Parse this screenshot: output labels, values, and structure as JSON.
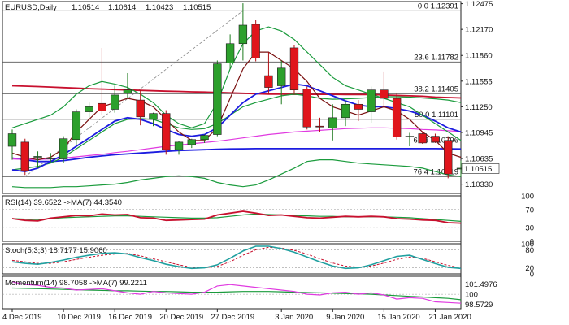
{
  "chart_data": [
    {
      "type": "candlestick",
      "panel": "price",
      "header": {
        "symbol": "EURUSD,Daily",
        "ohlc": [
          "1.10514",
          "1.10614",
          "1.10423",
          "1.10515"
        ]
      },
      "ylim": [
        1.1022,
        1.125
      ],
      "yticks": [
        "1.12475",
        "1.12170",
        "1.11860",
        "1.11555",
        "1.11250",
        "1.10945",
        "1.10635",
        "1.10330"
      ],
      "ytick_values": [
        1.12475,
        1.1217,
        1.1186,
        1.11555,
        1.1125,
        1.10945,
        1.10635,
        1.1033
      ],
      "current_price_label": "1.10515",
      "current_price": 1.10515,
      "fib_levels": [
        {
          "label": "0.0 1.12391",
          "value": 1.12391
        },
        {
          "label": "23.6 1.11782",
          "value": 1.11782
        },
        {
          "label": "38.2 1.11405",
          "value": 1.11405
        },
        {
          "label": "50.0 1.11101",
          "value": 1.11101
        },
        {
          "label": "61.8 1.10796",
          "value": 1.10796
        },
        {
          "label": "76.4 1.10419",
          "value": 1.10419
        }
      ],
      "candles": [
        {
          "o": 1.1078,
          "h": 1.1098,
          "l": 1.1062,
          "c": 1.1093
        },
        {
          "o": 1.1083,
          "h": 1.1087,
          "l": 1.1044,
          "c": 1.1049
        },
        {
          "o": 1.1065,
          "h": 1.1072,
          "l": 1.1052,
          "c": 1.1066
        },
        {
          "o": 1.1063,
          "h": 1.107,
          "l": 1.1058,
          "c": 1.1064
        },
        {
          "o": 1.1063,
          "h": 1.109,
          "l": 1.1058,
          "c": 1.1087
        },
        {
          "o": 1.1086,
          "h": 1.1122,
          "l": 1.108,
          "c": 1.1119
        },
        {
          "o": 1.1119,
          "h": 1.113,
          "l": 1.1112,
          "c": 1.1125
        },
        {
          "o": 1.1129,
          "h": 1.1195,
          "l": 1.1115,
          "c": 1.112
        },
        {
          "o": 1.1122,
          "h": 1.115,
          "l": 1.1118,
          "c": 1.1139
        },
        {
          "o": 1.1141,
          "h": 1.1165,
          "l": 1.1135,
          "c": 1.1145
        },
        {
          "o": 1.1133,
          "h": 1.1145,
          "l": 1.1103,
          "c": 1.1113
        },
        {
          "o": 1.111,
          "h": 1.1118,
          "l": 1.1102,
          "c": 1.1117
        },
        {
          "o": 1.1117,
          "h": 1.1121,
          "l": 1.1068,
          "c": 1.1074
        },
        {
          "o": 1.1074,
          "h": 1.1084,
          "l": 1.1068,
          "c": 1.1083
        },
        {
          "o": 1.108,
          "h": 1.1087,
          "l": 1.1076,
          "c": 1.1086
        },
        {
          "o": 1.1086,
          "h": 1.1092,
          "l": 1.1082,
          "c": 1.1091
        },
        {
          "o": 1.1092,
          "h": 1.118,
          "l": 1.109,
          "c": 1.1176
        },
        {
          "o": 1.1177,
          "h": 1.1211,
          "l": 1.117,
          "c": 1.12
        },
        {
          "o": 1.12,
          "h": 1.1248,
          "l": 1.118,
          "c": 1.1222
        },
        {
          "o": 1.1223,
          "h": 1.1228,
          "l": 1.1179,
          "c": 1.1183
        },
        {
          "o": 1.1162,
          "h": 1.119,
          "l": 1.114,
          "c": 1.1148
        },
        {
          "o": 1.115,
          "h": 1.118,
          "l": 1.1128,
          "c": 1.1171
        },
        {
          "o": 1.1195,
          "h": 1.1198,
          "l": 1.114,
          "c": 1.1145
        },
        {
          "o": 1.1146,
          "h": 1.1149,
          "l": 1.1098,
          "c": 1.1101
        },
        {
          "o": 1.1102,
          "h": 1.1112,
          "l": 1.1095,
          "c": 1.1101
        },
        {
          "o": 1.11,
          "h": 1.1128,
          "l": 1.1085,
          "c": 1.1112
        },
        {
          "o": 1.1112,
          "h": 1.1132,
          "l": 1.1102,
          "c": 1.1128
        },
        {
          "o": 1.1128,
          "h": 1.1133,
          "l": 1.1108,
          "c": 1.1122
        },
        {
          "o": 1.1119,
          "h": 1.1149,
          "l": 1.1106,
          "c": 1.1145
        },
        {
          "o": 1.1145,
          "h": 1.1167,
          "l": 1.1125,
          "c": 1.1135
        },
        {
          "o": 1.1135,
          "h": 1.1141,
          "l": 1.1086,
          "c": 1.1089
        },
        {
          "o": 1.1089,
          "h": 1.1094,
          "l": 1.1078,
          "c": 1.109
        },
        {
          "o": 1.1093,
          "h": 1.1096,
          "l": 1.1081,
          "c": 1.1082
        },
        {
          "o": 1.109,
          "h": 1.1093,
          "l": 1.1082,
          "c": 1.1083
        },
        {
          "o": 1.1085,
          "h": 1.109,
          "l": 1.104,
          "c": 1.1045
        },
        {
          "o": 1.1051,
          "h": 1.1061,
          "l": 1.1042,
          "c": 1.1052
        }
      ],
      "overlays": [
        {
          "color": "#c8102e",
          "values": [
            1.115,
            1.11495,
            1.1149,
            1.11485,
            1.11478,
            1.11472,
            1.11465,
            1.1146,
            1.11455,
            1.1145,
            1.11445,
            1.1144,
            1.11435,
            1.11432,
            1.11428,
            1.11425,
            1.1142,
            1.11415,
            1.1141,
            1.11405,
            1.114,
            1.114,
            1.11398,
            1.11398,
            1.11398,
            1.11398,
            1.11396,
            1.11396,
            1.11395,
            1.1139,
            1.11385,
            1.1138,
            1.11375,
            1.11365,
            1.1136,
            1.11355
          ]
        },
        {
          "color": "#1c1ce0",
          "values": [
            1.1064,
            1.1062,
            1.106,
            1.106,
            1.1061,
            1.1063,
            1.1065,
            1.10665,
            1.1068,
            1.1069,
            1.107,
            1.1071,
            1.1072,
            1.1073,
            1.10735,
            1.1074,
            1.10745,
            1.10748,
            1.1075,
            1.10752,
            1.10752,
            1.10752,
            1.10752,
            1.10752,
            1.10752,
            1.10752,
            1.10752,
            1.10752,
            1.10752,
            1.10752,
            1.10752,
            1.10752,
            1.10752,
            1.10752,
            1.1075,
            1.10748
          ]
        },
        {
          "color": "#e03ae0",
          "values": [
            1.1063,
            1.10625,
            1.10625,
            1.1063,
            1.1064,
            1.10655,
            1.1067,
            1.10685,
            1.10705,
            1.1072,
            1.1074,
            1.1076,
            1.1078,
            1.10795,
            1.1081,
            1.10825,
            1.1084,
            1.1086,
            1.1088,
            1.109,
            1.1092,
            1.10935,
            1.1095,
            1.1096,
            1.1097,
            1.1098,
            1.1099,
            1.10995,
            1.11,
            1.11,
            1.10995,
            1.1099,
            1.1098,
            1.10975,
            1.10965,
            1.10955
          ]
        },
        {
          "color": "#1a9b3c",
          "values": [
            1.105,
            1.1052,
            1.1054,
            1.1058,
            1.1065,
            1.1075,
            1.1085,
            1.1095,
            1.1105,
            1.111,
            1.1111,
            1.111,
            1.1105,
            1.11,
            1.1098,
            1.1099,
            1.1105,
            1.1115,
            1.1125,
            1.113,
            1.1134,
            1.1138,
            1.114,
            1.1138,
            1.1135,
            1.1134,
            1.11345,
            1.1135,
            1.1136,
            1.1137,
            1.1137,
            1.11365,
            1.11355,
            1.11345,
            1.1133,
            1.113
          ]
        },
        {
          "color": "#1c1ce0",
          "values": [
            1.105,
            1.1048,
            1.1052,
            1.106,
            1.1068,
            1.1078,
            1.1088,
            1.1098,
            1.1108,
            1.1112,
            1.111,
            1.1105,
            1.1098,
            1.1092,
            1.109,
            1.1092,
            1.11,
            1.1115,
            1.113,
            1.114,
            1.1144,
            1.1148,
            1.1152,
            1.115,
            1.1144,
            1.1138,
            1.1132,
            1.1127,
            1.1125,
            1.1125,
            1.1123,
            1.112,
            1.1115,
            1.1108,
            1.11,
            1.1095
          ]
        },
        {
          "color": "#7a1010",
          "values": [
            1.107,
            1.1065,
            1.1062,
            1.1065,
            1.1075,
            1.1095,
            1.111,
            1.1125,
            1.113,
            1.1135,
            1.1132,
            1.1125,
            1.111,
            1.1095,
            1.1085,
            1.1085,
            1.11,
            1.1135,
            1.117,
            1.119,
            1.119,
            1.118,
            1.117,
            1.1155,
            1.1135,
            1.1125,
            1.112,
            1.1115,
            1.112,
            1.1125,
            1.112,
            1.111,
            1.1095,
            1.1085,
            1.107,
            1.1065
          ]
        },
        {
          "color": "#1a9b3c",
          "values": [
            1.11,
            1.1105,
            1.111,
            1.1115,
            1.1125,
            1.114,
            1.115,
            1.1155,
            1.1152,
            1.1148,
            1.114,
            1.113,
            1.1115,
            1.1105,
            1.11,
            1.1105,
            1.113,
            1.117,
            1.12,
            1.1215,
            1.122,
            1.1215,
            1.1205,
            1.119,
            1.1175,
            1.116,
            1.115,
            1.1145,
            1.114,
            1.1135,
            1.113,
            1.1125,
            1.1115,
            1.1105,
            1.1095,
            1.1085
          ]
        },
        {
          "color": "#1a9b3c",
          "values": [
            1.103,
            1.1029,
            1.1029,
            1.1029,
            1.103,
            1.103,
            1.1031,
            1.1032,
            1.1033,
            1.1035,
            1.1038,
            1.104,
            1.1042,
            1.1043,
            1.1042,
            1.104,
            1.1035,
            1.1032,
            1.103,
            1.1032,
            1.1038,
            1.1045,
            1.1052,
            1.106,
            1.1062,
            1.1062,
            1.106,
            1.1058,
            1.1057,
            1.1056,
            1.1055,
            1.1054,
            1.1052,
            1.1048,
            1.1044,
            1.1042
          ]
        }
      ]
    },
    {
      "type": "line",
      "panel": "rsi",
      "header": "RSI(14) 39.6522  ->MA(7) 44.3540",
      "ylim": [
        0,
        100
      ],
      "yticks": [
        "100",
        "70",
        "30",
        "0"
      ],
      "ytick_values": [
        100,
        70,
        30,
        0
      ],
      "series": [
        {
          "color": "#1a9b3c",
          "values": [
            50,
            49,
            48,
            50,
            52,
            53,
            54,
            55,
            56,
            56,
            55,
            54,
            53,
            52,
            51,
            51,
            52,
            55,
            58,
            60,
            59,
            58,
            57,
            56,
            55,
            55,
            54,
            54,
            54,
            54,
            53,
            52,
            50,
            48,
            46,
            44
          ]
        },
        {
          "color": "#c8102e",
          "values": [
            50,
            46,
            45,
            51,
            54,
            57,
            56,
            60,
            58,
            59,
            52,
            51,
            46,
            47,
            48,
            49,
            58,
            62,
            66,
            62,
            57,
            58,
            55,
            52,
            51,
            53,
            55,
            54,
            55,
            54,
            50,
            49,
            47,
            46,
            41,
            40
          ]
        }
      ]
    },
    {
      "type": "line",
      "panel": "stoch",
      "header": "Stoch(5,3,3) 18.7177 15.9060",
      "ylim": [
        0,
        100
      ],
      "yticks": [
        "100",
        "80",
        "20",
        "0"
      ],
      "ytick_values": [
        100,
        80,
        20,
        0
      ],
      "series": [
        {
          "color": "#c8102e",
          "dashed": true,
          "values": [
            45,
            40,
            35,
            35,
            40,
            48,
            55,
            62,
            66,
            68,
            60,
            50,
            40,
            30,
            22,
            20,
            25,
            40,
            62,
            80,
            88,
            86,
            78,
            66,
            50,
            36,
            26,
            22,
            26,
            36,
            48,
            56,
            52,
            40,
            28,
            20
          ]
        },
        {
          "color": "#20a0a0",
          "values": [
            40,
            35,
            32,
            38,
            46,
            55,
            62,
            68,
            70,
            66,
            54,
            44,
            32,
            24,
            18,
            20,
            30,
            52,
            76,
            92,
            92,
            84,
            72,
            56,
            40,
            26,
            18,
            20,
            30,
            44,
            58,
            62,
            48,
            34,
            22,
            18
          ]
        }
      ]
    },
    {
      "type": "line",
      "panel": "momentum",
      "header": "Momentum(14) 98.7058  ->MA(7) 99.2211",
      "ylim": [
        97.9,
        102.6
      ],
      "yticks": [
        "101.4976",
        "100",
        "98.5729"
      ],
      "ytick_values": [
        101.4976,
        100,
        98.5729
      ],
      "series": [
        {
          "color": "#1a9b3c",
          "values": [
            100.9,
            100.85,
            100.8,
            100.75,
            100.7,
            100.65,
            100.6,
            100.55,
            100.5,
            100.5,
            100.45,
            100.4,
            100.4,
            100.35,
            100.3,
            100.3,
            100.3,
            100.35,
            100.4,
            100.4,
            100.4,
            100.35,
            100.3,
            100.25,
            100.2,
            100.15,
            100.1,
            100.05,
            100.0,
            99.9,
            99.8,
            99.7,
            99.6,
            99.5,
            99.4,
            99.2
          ]
        },
        {
          "color": "#e03ae0",
          "values": [
            101.8,
            101.4,
            101.3,
            101.0,
            100.9,
            100.6,
            100.7,
            100.8,
            100.5,
            100.2,
            100.0,
            100.4,
            100.2,
            100.1,
            100.0,
            100.3,
            101.2,
            101.4,
            101.2,
            101.0,
            100.8,
            100.6,
            100.4,
            100.0,
            99.9,
            100.2,
            100.3,
            100.0,
            100.2,
            99.9,
            99.3,
            99.5,
            99.4,
            98.9,
            98.8,
            98.7
          ]
        }
      ]
    }
  ],
  "x_axis": {
    "labels": [
      "4 Dec 2019",
      "10 Dec 2019",
      "16 Dec 2019",
      "20 Dec 2019",
      "27 Dec 2019",
      "3 Jan 2020",
      "9 Jan 2020",
      "15 Jan 2020",
      "21 Jan 2020"
    ],
    "label_bar_index": [
      0,
      4,
      8,
      12,
      16,
      21,
      25,
      29,
      33
    ]
  }
}
